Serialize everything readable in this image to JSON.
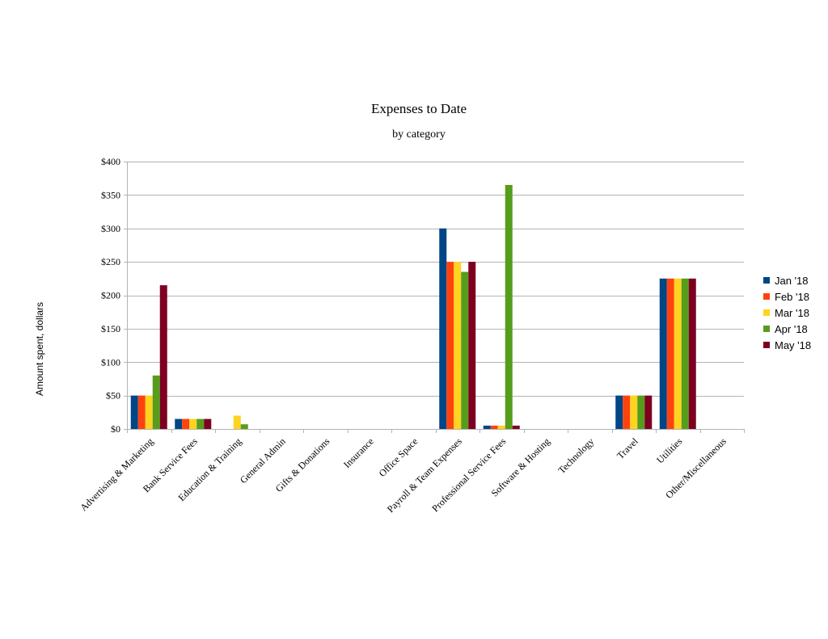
{
  "chart_data": {
    "type": "bar",
    "title": "Expenses to Date",
    "subtitle": "by category",
    "ylabel": "Amount spent, dollars",
    "xlabel": "",
    "ylim": [
      0,
      400
    ],
    "ytick_values": [
      0,
      50,
      100,
      150,
      200,
      250,
      300,
      350,
      400
    ],
    "ytick_labels": [
      "$0",
      "$50",
      "$100",
      "$150",
      "$200",
      "$250",
      "$300",
      "$350",
      "$400"
    ],
    "grid": true,
    "legend_position": "right",
    "categories": [
      "Advertising & Marketing",
      "Bank Service Fees",
      "Education & Training",
      "General Admin",
      "Gifts & Donations",
      "Insurance",
      "Office Space",
      "Payroll & Team Expenses",
      "Professional Service Fees",
      "Software & Hosting",
      "Technology",
      "Travel",
      "Utilities",
      "Other/Miscellaneous"
    ],
    "series": [
      {
        "name": "Jan '18",
        "color": "#004586",
        "values": [
          50,
          15,
          0,
          0,
          0,
          0,
          0,
          300,
          5,
          0,
          0,
          50,
          225,
          0
        ]
      },
      {
        "name": "Feb '18",
        "color": "#ff420e",
        "values": [
          50,
          15,
          0,
          0,
          0,
          0,
          0,
          250,
          5,
          0,
          0,
          50,
          225,
          0
        ]
      },
      {
        "name": "Mar '18",
        "color": "#ffd320",
        "values": [
          50,
          15,
          20,
          0,
          0,
          0,
          0,
          250,
          5,
          0,
          0,
          50,
          225,
          0
        ]
      },
      {
        "name": "Apr '18",
        "color": "#579d1c",
        "values": [
          80,
          15,
          7,
          0,
          0,
          0,
          0,
          235,
          365,
          0,
          0,
          50,
          225,
          0
        ]
      },
      {
        "name": "May '18",
        "color": "#7e0021",
        "values": [
          215,
          15,
          0,
          0,
          0,
          0,
          0,
          250,
          5,
          0,
          0,
          50,
          225,
          0
        ]
      }
    ],
    "colors": {
      "grid": "#b3b3b3",
      "axis": "#b3b3b3"
    }
  }
}
